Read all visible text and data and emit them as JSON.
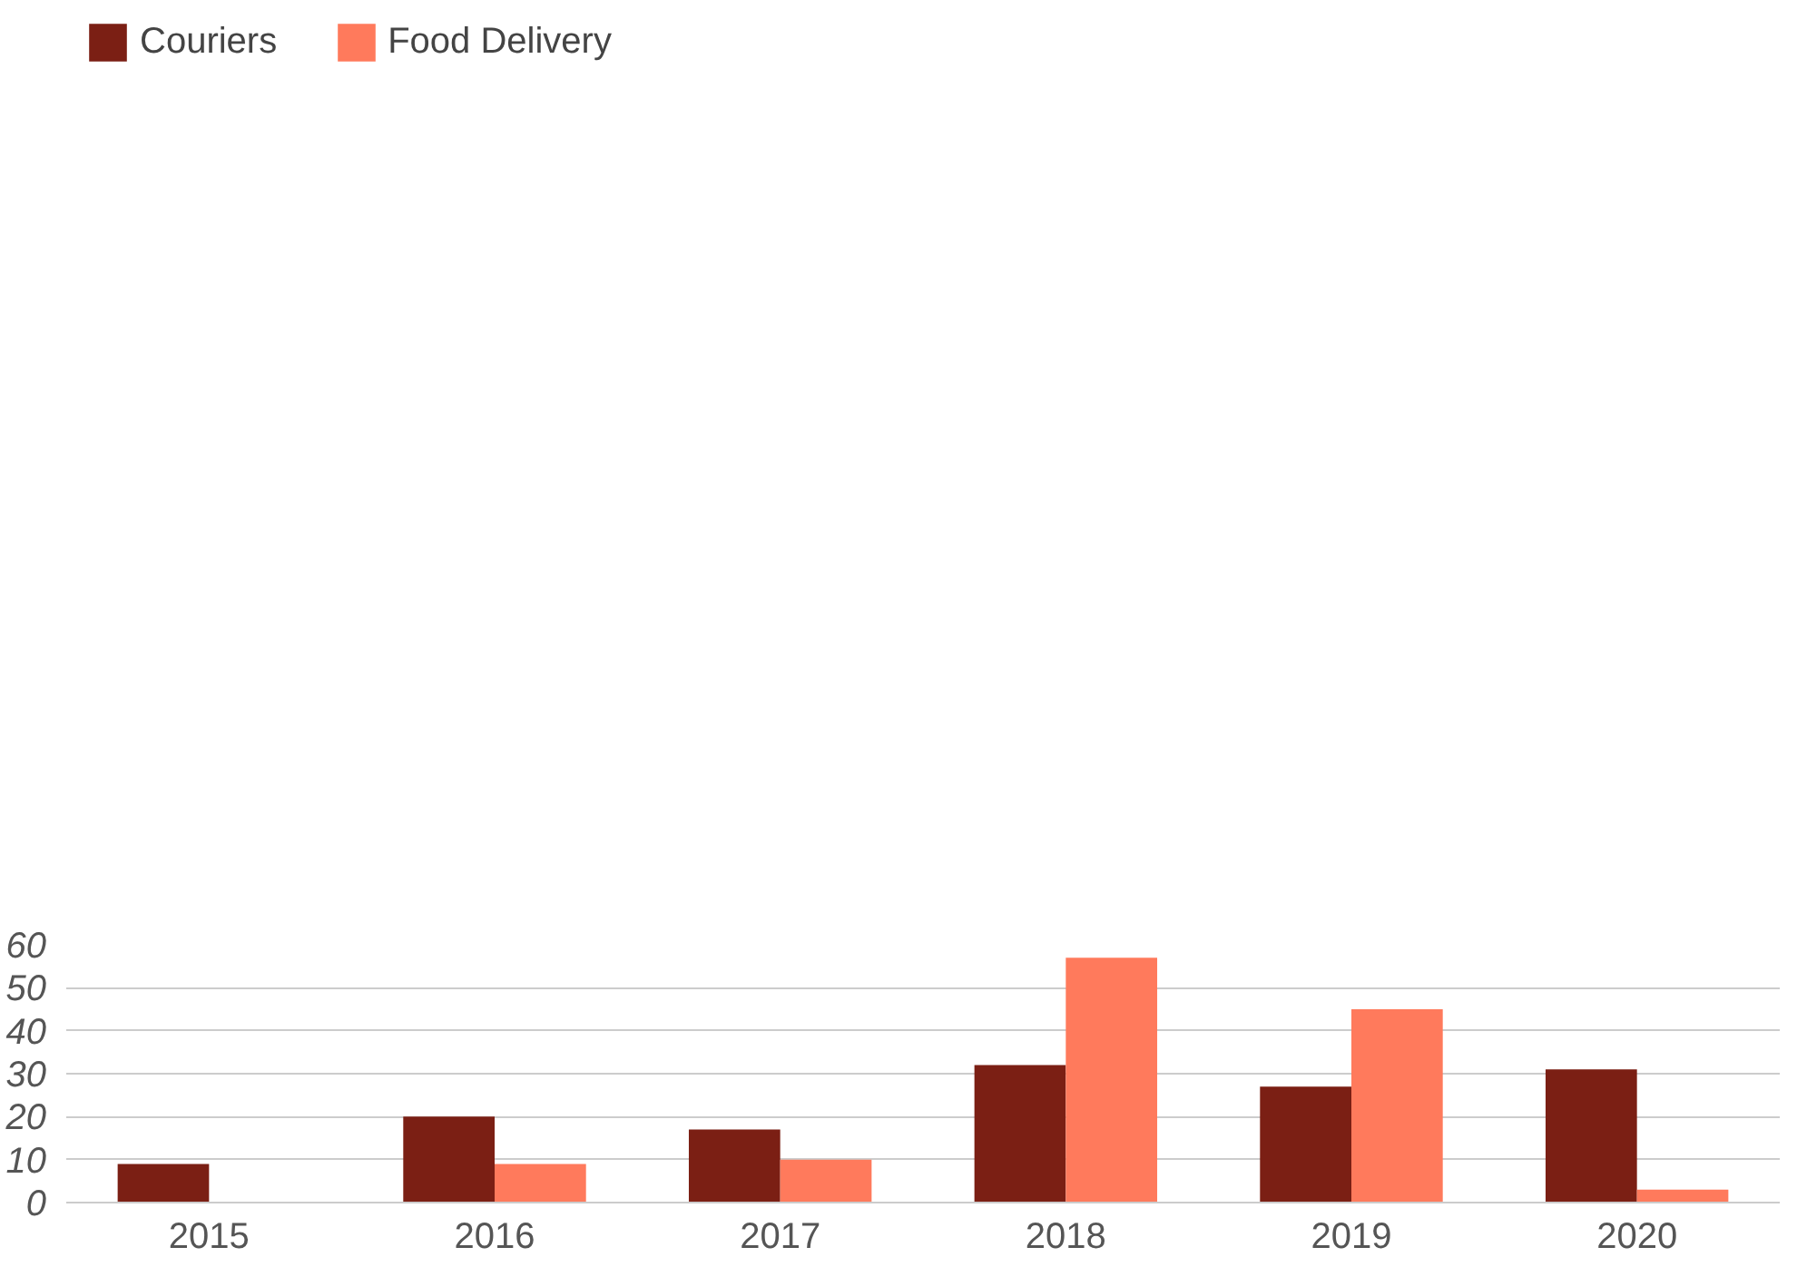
{
  "chart_data": {
    "type": "bar",
    "categories": [
      "2015",
      "2016",
      "2017",
      "2018",
      "2019",
      "2020"
    ],
    "series": [
      {
        "name": "Couriers",
        "color": "#7b1f14",
        "values": [
          9,
          20,
          17,
          32,
          27,
          31
        ]
      },
      {
        "name": "Food Delivery",
        "color": "#ff7a5c",
        "values": [
          0,
          9,
          10,
          57,
          45,
          3
        ]
      }
    ],
    "ylim": [
      0,
      60
    ],
    "yticks": [
      0,
      10,
      20,
      30,
      40,
      50,
      60
    ],
    "grid": "y",
    "legend": "top left"
  }
}
